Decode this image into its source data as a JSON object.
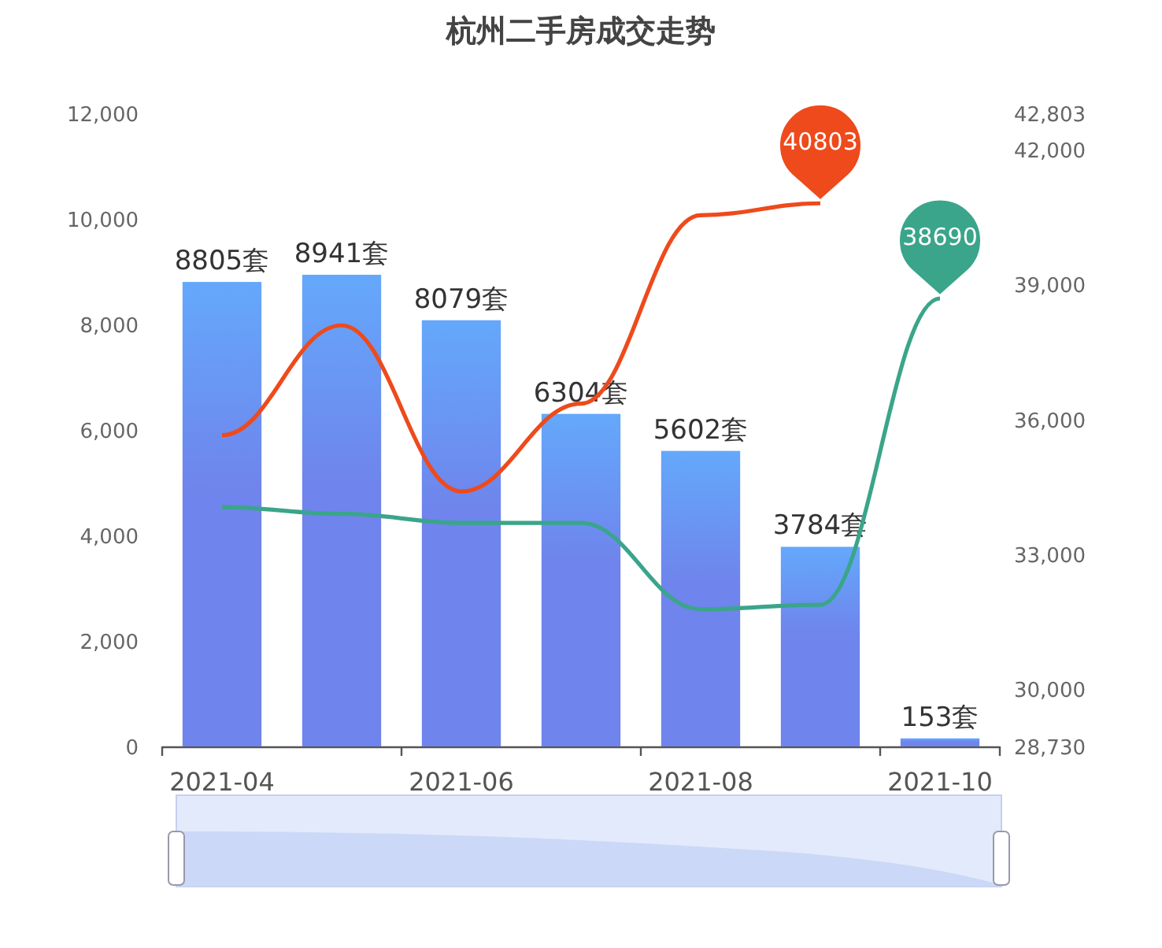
{
  "chart_data": {
    "type": "bar",
    "title": "杭州二手房成交走势",
    "categories": [
      "2021-04",
      null,
      "2021-06",
      null,
      "2021-08",
      null,
      "2021-10"
    ],
    "series": [
      {
        "color": "#6f84ec",
        "values": [
          8805,
          8941,
          8079,
          6304,
          5602,
          3784,
          153
        ],
        "value_labels": [
          "8805套",
          "8941套",
          "8079套",
          "6304套",
          "5602套",
          "3784套",
          "153套"
        ]
      },
      {
        "type": "line",
        "axis": "y2",
        "color": "#ee4a1c",
        "values": [
          35650,
          38090,
          34400,
          36350,
          40540,
          40803,
          null
        ],
        "value_labels": [
          null,
          null,
          null,
          null,
          null,
          "40803",
          null
        ]
      },
      {
        "type": "line",
        "axis": "y2",
        "color": "#3aa58a",
        "values": [
          34050,
          33900,
          33700,
          33700,
          31780,
          31880,
          38690
        ],
        "value_labels": [
          null,
          null,
          null,
          null,
          null,
          null,
          "38690"
        ]
      }
    ],
    "ylim": [
      0,
      12000
    ],
    "yticks": [
      0,
      {
        "value": 2000,
        "label": "2,000"
      },
      {
        "value": 4000,
        "label": "4,000"
      },
      {
        "value": 6000,
        "label": "6,000"
      },
      {
        "value": 8000,
        "label": "8,000"
      },
      {
        "value": 10000,
        "label": "10,000"
      },
      {
        "value": 12000,
        "label": "12,000"
      }
    ],
    "y2lim": [
      28730,
      42803
    ],
    "y2ticks": [
      {
        "value": 28730,
        "label": "28,730"
      },
      {
        "value": 30000,
        "label": "30,000"
      },
      {
        "value": 33000,
        "label": "33,000"
      },
      {
        "value": 36000,
        "label": "36,000"
      },
      {
        "value": 39000,
        "label": "39,000"
      },
      {
        "value": 42000,
        "label": "42,000"
      },
      {
        "value": 42803,
        "label": "42,803"
      }
    ],
    "grid": false
  }
}
